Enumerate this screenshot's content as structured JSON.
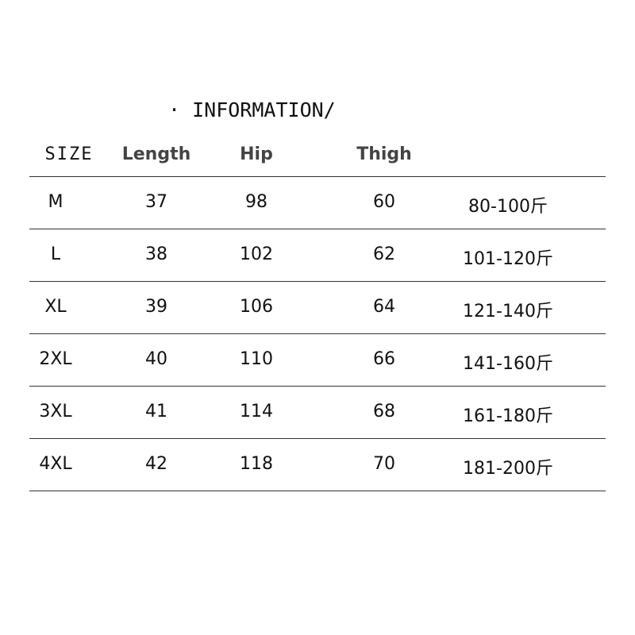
{
  "title": "· INFORMATION/",
  "headers": [
    "SIZE",
    "Length",
    "Hip",
    "Thigh",
    ""
  ],
  "rows": [
    [
      "M",
      "37",
      "98",
      "60",
      "80-100斤"
    ],
    [
      "L",
      "38",
      "102",
      "62",
      "101-120斤"
    ],
    [
      "XL",
      "39",
      "106",
      "64",
      "121-140斤"
    ],
    [
      "2XL",
      "40",
      "110",
      "66",
      "141-160斤"
    ],
    [
      "3XL",
      "41",
      "114",
      "68",
      "161-180斤"
    ],
    [
      "4XL",
      "42",
      "118",
      "70",
      "181-200斤"
    ]
  ]
}
